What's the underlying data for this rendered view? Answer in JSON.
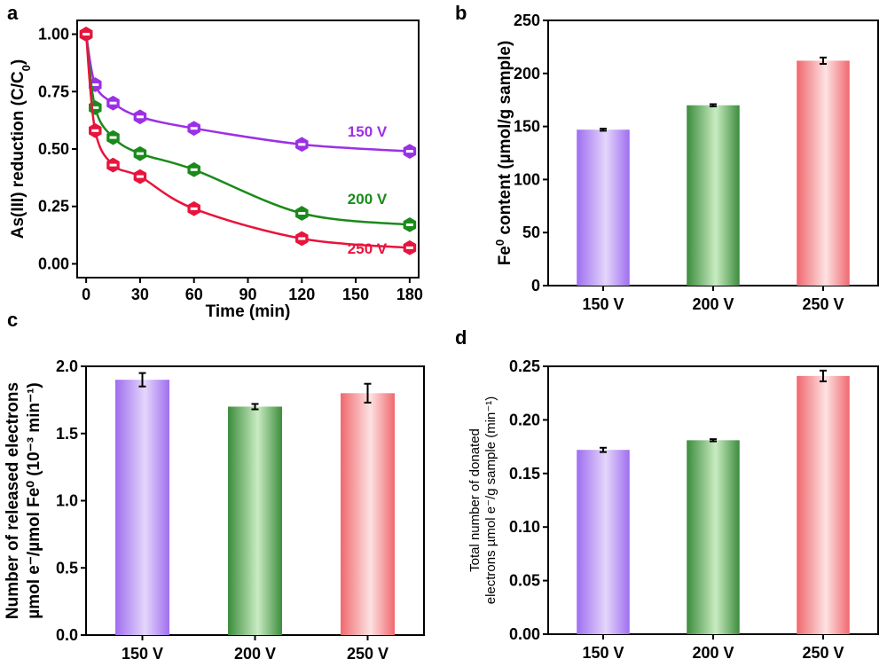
{
  "chart_data": [
    {
      "panel": "a",
      "type": "line",
      "xlabel": "Time (min)",
      "ylabel": "As(III) reduction (C/C",
      "ylabel_sub": "0",
      "ylabel_end": ")",
      "xlim": [
        -5,
        185
      ],
      "ylim": [
        -0.06,
        1.06
      ],
      "xticks": [
        0,
        30,
        60,
        90,
        120,
        150,
        180
      ],
      "yticks": [
        0.0,
        0.25,
        0.5,
        0.75,
        1.0
      ],
      "ytick_labels": [
        "0.00",
        "0.25",
        "0.50",
        "0.75",
        "1.00"
      ],
      "series": [
        {
          "name": "150 V",
          "color": "#9b30e6",
          "x": [
            0,
            5,
            15,
            30,
            60,
            120,
            180
          ],
          "y": [
            1.0,
            0.78,
            0.7,
            0.64,
            0.59,
            0.52,
            0.49
          ]
        },
        {
          "name": "200 V",
          "color": "#1a8a1a",
          "x": [
            0,
            5,
            15,
            30,
            60,
            120,
            180
          ],
          "y": [
            1.0,
            0.68,
            0.55,
            0.48,
            0.41,
            0.22,
            0.17
          ]
        },
        {
          "name": "250 V",
          "color": "#e8143c",
          "x": [
            0,
            5,
            15,
            30,
            60,
            120,
            180
          ],
          "y": [
            1.0,
            0.58,
            0.43,
            0.38,
            0.24,
            0.11,
            0.07
          ]
        }
      ]
    },
    {
      "panel": "b",
      "type": "bar",
      "categories": [
        "150 V",
        "200 V",
        "250 V"
      ],
      "values": [
        147,
        170,
        212
      ],
      "errors": [
        1,
        1,
        3
      ],
      "ylabel_pre": "Fe",
      "ylabel_sup": "0",
      "ylabel_post": " content (µmol/g sample)",
      "ylim": [
        0,
        250
      ],
      "yticks": [
        0,
        50,
        100,
        150,
        200,
        250
      ],
      "ytick_labels": [
        "0",
        "50",
        "100",
        "150",
        "200",
        "250"
      ]
    },
    {
      "panel": "c",
      "type": "bar",
      "categories": [
        "150 V",
        "200 V",
        "250 V"
      ],
      "values": [
        1.9,
        1.7,
        1.8
      ],
      "errors": [
        0.05,
        0.02,
        0.07
      ],
      "ylabel_line1": "Number of released electrons",
      "ylabel_line2": "µmol e⁻/µmol Fe⁰ (10⁻³ min⁻¹)",
      "ylim": [
        0,
        2.0
      ],
      "yticks": [
        0,
        0.5,
        1.0,
        1.5,
        2.0
      ],
      "ytick_labels": [
        "0.0",
        "0.5",
        "1.0",
        "1.5",
        "2.0"
      ]
    },
    {
      "panel": "d",
      "type": "bar",
      "categories": [
        "150 V",
        "200 V",
        "250 V"
      ],
      "values": [
        0.172,
        0.181,
        0.241
      ],
      "errors": [
        0.002,
        0.001,
        0.005
      ],
      "ylabel_line1": "Total number of donated",
      "ylabel_line2": "electrons µmol e⁻/g sample (min⁻¹)",
      "ylim": [
        0,
        0.25
      ],
      "yticks": [
        0,
        0.05,
        0.1,
        0.15,
        0.2,
        0.25
      ],
      "ytick_labels": [
        "0.00",
        "0.05",
        "0.10",
        "0.15",
        "0.20",
        "0.25"
      ]
    }
  ],
  "bar_gradients": [
    {
      "dark": "#9f6ef0",
      "light": "#e4d6fb"
    },
    {
      "dark": "#3c8c3c",
      "light": "#c9ecc2"
    },
    {
      "dark": "#f0686e",
      "light": "#fde2e2"
    }
  ]
}
